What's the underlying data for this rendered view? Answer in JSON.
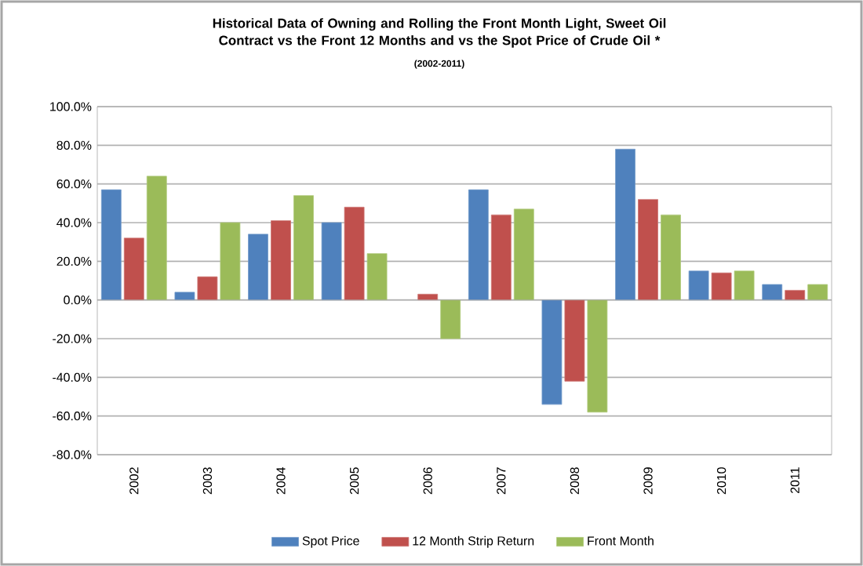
{
  "chart_data": {
    "type": "bar",
    "title": "Historical Data of Owning and Rolling the Front Month Light, Sweet Oil Contract vs the Front 12 Months  and vs the Spot Price of Crude Oil *",
    "subtitle": "(2002-2011)",
    "categories": [
      "2002",
      "2003",
      "2004",
      "2005",
      "2006",
      "2007",
      "2008",
      "2009",
      "2010",
      "2011"
    ],
    "series": [
      {
        "name": "Spot Price",
        "color": "#4f81bd",
        "values": [
          57,
          4,
          34,
          40,
          null,
          57,
          -54,
          78,
          15,
          8
        ]
      },
      {
        "name": "12 Month Strip Return",
        "color": "#c0504d",
        "values": [
          32,
          12,
          41,
          48,
          3,
          44,
          -42,
          52,
          14,
          5
        ]
      },
      {
        "name": "Front Month",
        "color": "#9bbb59",
        "values": [
          64,
          40,
          54,
          24,
          -20,
          47,
          -58,
          44,
          15,
          8
        ]
      }
    ],
    "ylim": [
      -80,
      100
    ],
    "yticks": [
      {
        "value": -80,
        "label": "-80.0%"
      },
      {
        "value": -60,
        "label": "-60.0%"
      },
      {
        "value": -40,
        "label": "-40.0%"
      },
      {
        "value": -20,
        "label": "-20.0%"
      },
      {
        "value": 0,
        "label": "0.0%"
      },
      {
        "value": 20,
        "label": "20.0%"
      },
      {
        "value": 40,
        "label": "40.0%"
      },
      {
        "value": 60,
        "label": "60.0%"
      },
      {
        "value": 80,
        "label": "80.0%"
      },
      {
        "value": 100,
        "label": "100.0%"
      }
    ],
    "grid": "y",
    "legend": "bottom"
  }
}
